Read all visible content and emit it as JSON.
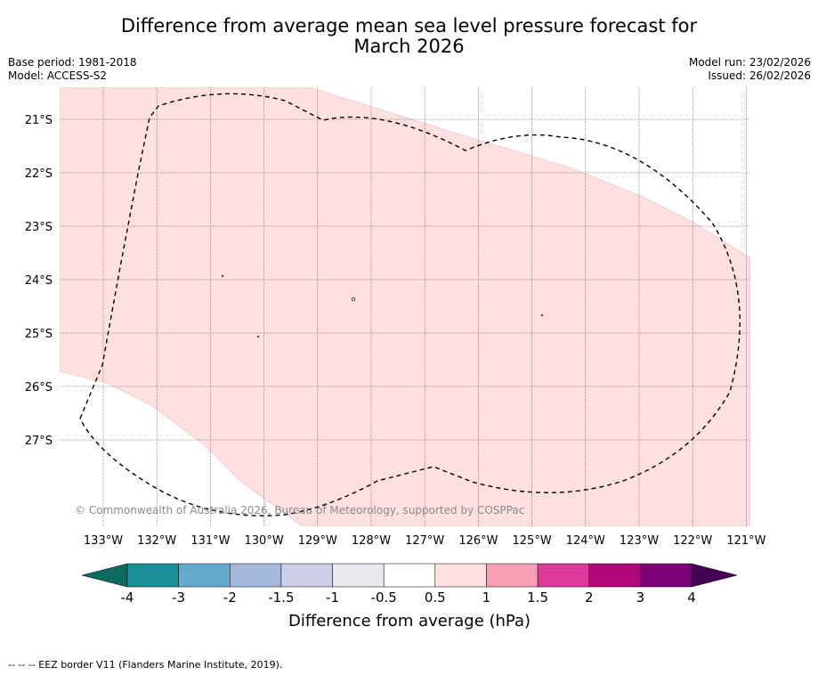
{
  "title_line1": "Difference from average mean sea level pressure forecast for",
  "title_line2": "March 2026",
  "meta_left": {
    "base_period": "Base period: 1981-2018",
    "model": "Model: ACCESS-S2"
  },
  "meta_right": {
    "model_run": "Model run: 23/02/2026",
    "issued": "Issued: 26/02/2026"
  },
  "map": {
    "lat_labels": [
      "21°S",
      "22°S",
      "23°S",
      "24°S",
      "25°S",
      "26°S",
      "27°S"
    ],
    "lon_labels": [
      "133°W",
      "132°W",
      "131°W",
      "130°W",
      "129°W",
      "128°W",
      "127°W",
      "126°W",
      "125°W",
      "124°W",
      "123°W",
      "122°W",
      "121°W"
    ],
    "copyright": "© Commonwealth of Australia 2026, Bureau of Meteorology, supported by COSPPac",
    "fill_color": "#fde0df"
  },
  "colorbar": {
    "label": "Difference from average (hPa)",
    "tick_labels": [
      "-4",
      "-3",
      "-2",
      "-1.5",
      "-1",
      "-0.5",
      "0.5",
      "1",
      "1.5",
      "2",
      "3",
      "4"
    ],
    "colors": [
      "#0c6b5f",
      "#1b9099",
      "#64aacf",
      "#a6b9da",
      "#cccfe6",
      "#ebe9ed",
      "#ffffff",
      "#fde0df",
      "#f99fb5",
      "#dc3b9b",
      "#b0077b",
      "#7c0179",
      "#450153"
    ]
  },
  "footnote": "-- -- -- EEZ border V11 (Flanders Marine Institute, 2019)."
}
